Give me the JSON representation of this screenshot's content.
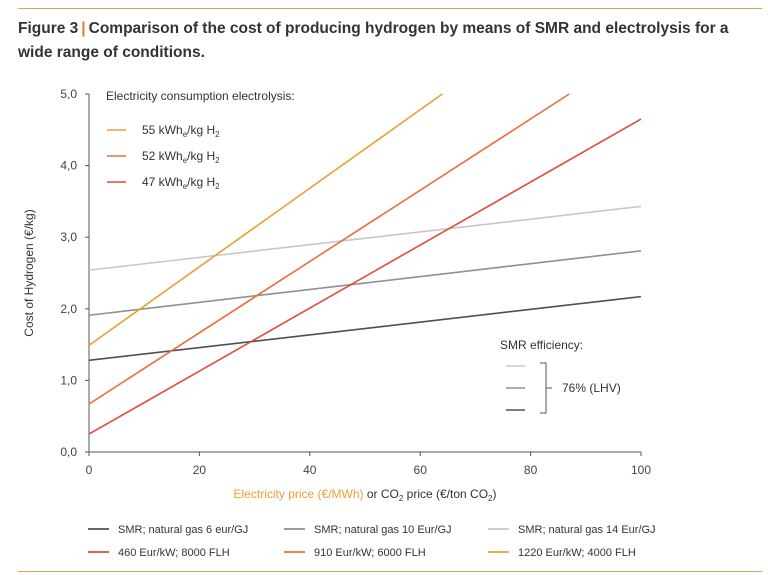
{
  "figure": {
    "label": "Figure 3",
    "separator": "|",
    "title": "Comparison of the cost of producing hydrogen by means of SMR and electrolysis for a wide range of conditions."
  },
  "chart_data": {
    "type": "line",
    "ylabel": "Cost of Hydrogen (€/kg)",
    "xlabel_part1": "Electricity price (€/MWh)",
    "xlabel_part2": " or CO",
    "xlabel_sub": "2",
    "xlabel_part3": " price (€/ton CO",
    "xlabel_sub2": "2",
    "xlabel_part4": ")",
    "xlim": [
      0,
      100
    ],
    "ylim": [
      0,
      5
    ],
    "x_ticks": [
      "0",
      "20",
      "40",
      "60",
      "80",
      "100"
    ],
    "y_ticks": [
      "0,0",
      "1,0",
      "2,0",
      "3,0",
      "4,0",
      "5,0"
    ],
    "x_tick_values": [
      0,
      20,
      40,
      60,
      80,
      100
    ],
    "y_tick_values": [
      0,
      1,
      2,
      3,
      4,
      5
    ],
    "inset_legend_title": "Electricity consumption electrolysis:",
    "inset_legend": [
      {
        "main": "55 kWh",
        "sub1": "e",
        "mid": "/kg H",
        "sub2": "2",
        "color": "#e8a030"
      },
      {
        "main": "52 kWh",
        "sub1": "e",
        "mid": "/kg H",
        "sub2": "2",
        "color": "#e8703a"
      },
      {
        "main": "47 kWh",
        "sub1": "e",
        "mid": "/kg H",
        "sub2": "2",
        "color": "#e04a3a"
      }
    ],
    "smr_legend_title": "SMR efficiency:",
    "smr_legend_value": "76% (LHV)",
    "smr_legend_colors": [
      "#c8c8c8",
      "#909090",
      "#505050"
    ],
    "series": [
      {
        "name": "SMR; natural gas 6 eur/GJ",
        "color": "#505050",
        "x": [
          0,
          100
        ],
        "y": [
          1.28,
          2.17
        ]
      },
      {
        "name": "SMR; natural gas 10 Eur/GJ",
        "color": "#909090",
        "x": [
          0,
          100
        ],
        "y": [
          1.91,
          2.81
        ]
      },
      {
        "name": "SMR; natural gas 14 Eur/GJ",
        "color": "#c8c8c8",
        "x": [
          0,
          100
        ],
        "y": [
          2.54,
          3.43
        ]
      },
      {
        "name": "460 Eur/kW; 8000 FLH",
        "color": "#e04a3a",
        "x": [
          0,
          100
        ],
        "y": [
          0.25,
          4.65
        ]
      },
      {
        "name": "910 Eur/kW; 6000 FLH",
        "color": "#e8703a",
        "x": [
          0,
          87
        ],
        "y": [
          0.67,
          5.0
        ]
      },
      {
        "name": "1220 Eur/kW; 4000 FLH",
        "color": "#e8a030",
        "x": [
          0,
          64
        ],
        "y": [
          1.49,
          5.0
        ]
      }
    ]
  }
}
